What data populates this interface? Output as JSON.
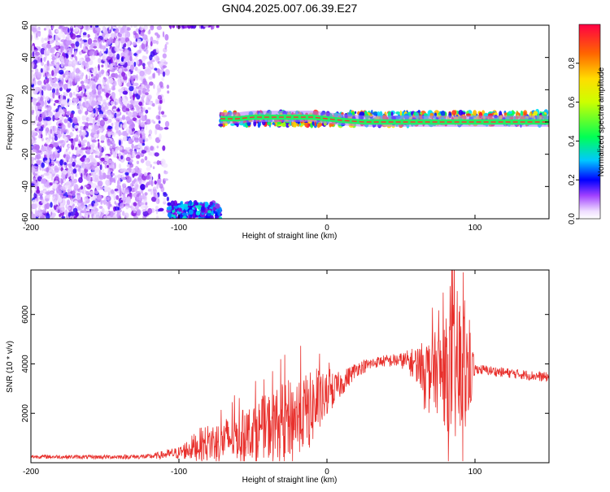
{
  "title": "GN04.2025.007.06.39.E27",
  "chart_data": [
    {
      "type": "heatmap",
      "xlabel": "Height of straight line (km)",
      "ylabel": "Frequency (Hz)",
      "xlim": [
        -200,
        150
      ],
      "ylim": [
        -60,
        60
      ],
      "x_ticks": [
        -200,
        -100,
        0,
        100
      ],
      "y_ticks": [
        -60,
        -40,
        -20,
        0,
        20,
        40,
        60
      ],
      "colorbar": {
        "label": "Normalized spectral amplitude",
        "range": [
          0,
          1
        ],
        "ticks": [
          0.0,
          0.2,
          0.4,
          0.6,
          0.8
        ],
        "colormap": [
          "#ffffff",
          "#cc99ff",
          "#7a00e0",
          "#0000ff",
          "#00e0ff",
          "#00ff44",
          "#ffff00",
          "#ff8800",
          "#ff0033"
        ]
      },
      "regions": [
        {
          "x": [
            -200,
            -107
          ],
          "y": [
            -60,
            60
          ],
          "amplitude": [
            0.05,
            0.35
          ]
        },
        {
          "x": [
            -107,
            -72
          ],
          "y": [
            -60,
            -50
          ],
          "amplitude": [
            0.2,
            0.55
          ]
        },
        {
          "x": [
            -107,
            -72
          ],
          "y": [
            59,
            60
          ],
          "amplitude": [
            0.1,
            0.3
          ]
        },
        {
          "x": [
            -72,
            150
          ],
          "y": [
            -2,
            6
          ],
          "amplitude": [
            0.3,
            1.0
          ]
        }
      ],
      "ridge_center_hz": [
        [
          -72,
          2
        ],
        [
          -60,
          2
        ],
        [
          -50,
          3
        ],
        [
          -40,
          3
        ],
        [
          -30,
          3
        ],
        [
          -20,
          3
        ],
        [
          -10,
          3
        ],
        [
          0,
          2
        ],
        [
          10,
          1
        ],
        [
          25,
          0
        ],
        [
          50,
          0
        ],
        [
          75,
          0
        ],
        [
          100,
          0
        ],
        [
          125,
          0
        ],
        [
          150,
          0
        ]
      ]
    },
    {
      "type": "line",
      "xlabel": "Height of straight line (km)",
      "ylabel": "SNR (10 * v/v)",
      "xlim": [
        -200,
        150
      ],
      "ylim": [
        0,
        7800
      ],
      "x_ticks": [
        -200,
        -100,
        0,
        100
      ],
      "y_ticks": [
        2000,
        4000,
        6000
      ],
      "series": [
        {
          "color": "#e8302c",
          "envelope": [
            {
              "x": -200,
              "mean": 250,
              "spread": 80
            },
            {
              "x": -160,
              "mean": 230,
              "spread": 80
            },
            {
              "x": -120,
              "mean": 250,
              "spread": 100
            },
            {
              "x": -100,
              "mean": 400,
              "spread": 250
            },
            {
              "x": -85,
              "mean": 750,
              "spread": 700
            },
            {
              "x": -70,
              "mean": 900,
              "spread": 900
            },
            {
              "x": -55,
              "mean": 1200,
              "spread": 1000
            },
            {
              "x": -40,
              "mean": 1500,
              "spread": 1300
            },
            {
              "x": -25,
              "mean": 1800,
              "spread": 1600
            },
            {
              "x": -10,
              "mean": 2200,
              "spread": 1500
            },
            {
              "x": 0,
              "mean": 2700,
              "spread": 900
            },
            {
              "x": 10,
              "mean": 3200,
              "spread": 500
            },
            {
              "x": 20,
              "mean": 3800,
              "spread": 300
            },
            {
              "x": 35,
              "mean": 4100,
              "spread": 220
            },
            {
              "x": 50,
              "mean": 4150,
              "spread": 300
            },
            {
              "x": 60,
              "mean": 4000,
              "spread": 700
            },
            {
              "x": 70,
              "mean": 3800,
              "spread": 1300
            },
            {
              "x": 80,
              "mean": 3600,
              "spread": 2200
            },
            {
              "x": 88,
              "mean": 3700,
              "spread": 3300
            },
            {
              "x": 95,
              "mean": 3600,
              "spread": 2500
            },
            {
              "x": 100,
              "mean": 3800,
              "spread": 200
            },
            {
              "x": 120,
              "mean": 3650,
              "spread": 200
            },
            {
              "x": 150,
              "mean": 3450,
              "spread": 200
            }
          ]
        }
      ]
    }
  ]
}
